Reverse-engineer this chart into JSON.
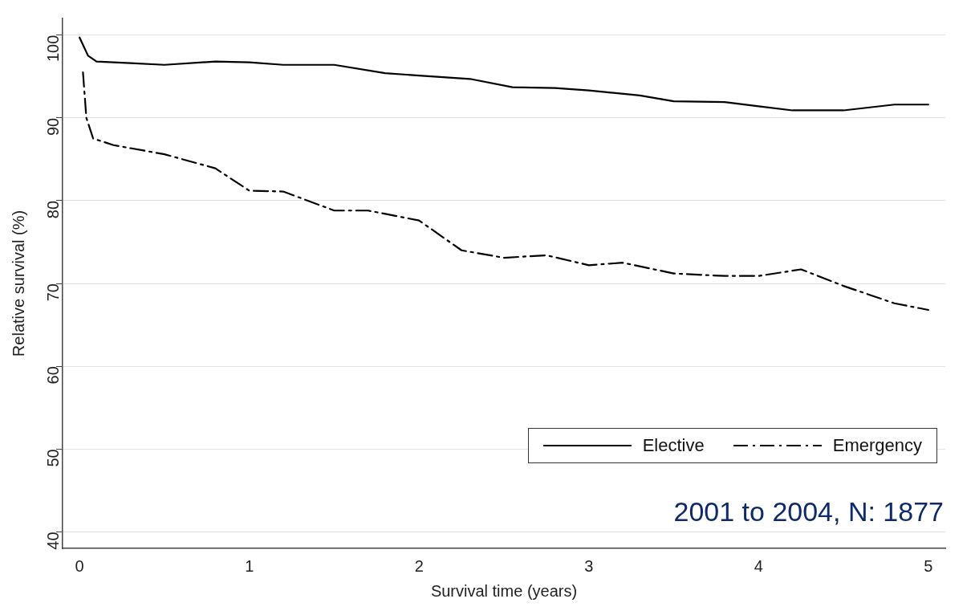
{
  "chart_data": {
    "type": "line",
    "xlabel": "Survival time (years)",
    "ylabel": "Relative survival (%)",
    "xlim": [
      -0.1,
      5.1
    ],
    "ylim": [
      38,
      102
    ],
    "xticks": [
      0,
      1,
      2,
      3,
      4,
      5
    ],
    "yticks": [
      40,
      50,
      60,
      70,
      80,
      90,
      100
    ],
    "grid": "y",
    "legend": "bottom right",
    "marker": "none",
    "annotations": [
      "2001 to 2004, N: 1877"
    ],
    "series": [
      {
        "name": "Elective",
        "color": "#000000",
        "line_style": "solid",
        "x": [
          0,
          0.05,
          0.1,
          0.3,
          0.5,
          0.8,
          1.0,
          1.2,
          1.5,
          1.8,
          2.0,
          2.3,
          2.55,
          2.8,
          3.0,
          3.3,
          3.5,
          3.8,
          4.0,
          4.2,
          4.5,
          4.8,
          5.0
        ],
        "values": [
          99.7,
          97.5,
          96.8,
          96.6,
          96.4,
          96.8,
          96.7,
          96.4,
          96.4,
          95.4,
          95.1,
          94.7,
          93.7,
          93.6,
          93.3,
          92.7,
          92.0,
          91.9,
          91.4,
          90.9,
          90.9,
          91.6,
          91.6
        ]
      },
      {
        "name": "Emergency",
        "color": "#000000",
        "line_style": "dashed",
        "x": [
          0.02,
          0.04,
          0.08,
          0.2,
          0.5,
          0.8,
          1.0,
          1.2,
          1.5,
          1.7,
          2.0,
          2.25,
          2.5,
          2.75,
          3.0,
          3.2,
          3.5,
          3.8,
          4.0,
          4.25,
          4.5,
          4.8,
          5.0
        ],
        "values": [
          95.5,
          90,
          87.5,
          86.7,
          85.6,
          83.9,
          81.2,
          81.1,
          78.8,
          78.8,
          77.6,
          74.0,
          73.1,
          73.4,
          72.2,
          72.5,
          71.2,
          70.9,
          70.9,
          71.7,
          69.7,
          67.6,
          66.8
        ]
      }
    ]
  }
}
